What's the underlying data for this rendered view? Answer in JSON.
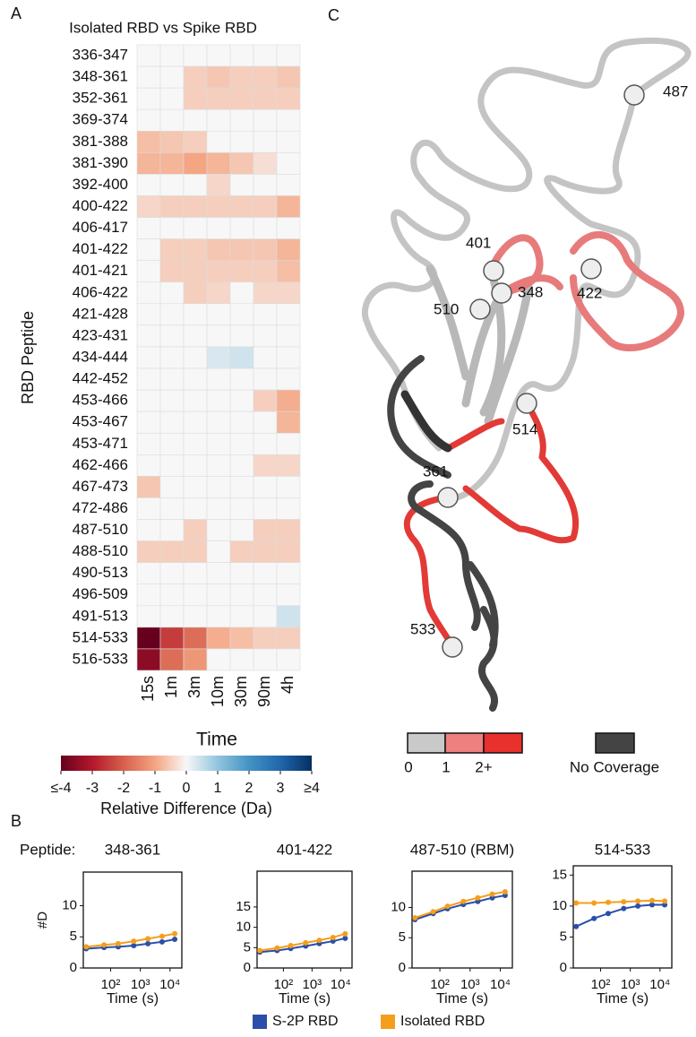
{
  "panel_labels": [
    "A",
    "B",
    "C"
  ],
  "peptide_prefix": "Peptide:",
  "structure": {
    "labels": [
      "487",
      "401",
      "348",
      "422",
      "510",
      "514",
      "361",
      "533"
    ],
    "legend": [
      "0",
      "1",
      "2+",
      "No Coverage"
    ]
  },
  "chart_data": [
    {
      "type": "heatmap",
      "title": "Isolated RBD vs Spike RBD",
      "xlabel": "Time",
      "ylabel": "RBD Peptide",
      "x": [
        "15s",
        "1m",
        "3m",
        "10m",
        "30m",
        "90m",
        "4h"
      ],
      "categories": [
        "336-347",
        "348-361",
        "352-361",
        "369-374",
        "381-388",
        "381-390",
        "392-400",
        "400-422",
        "406-417",
        "401-422",
        "401-421",
        "406-422",
        "421-428",
        "423-431",
        "434-444",
        "442-452",
        "453-466",
        "453-467",
        "453-471",
        "462-466",
        "467-473",
        "472-486",
        "487-510",
        "488-510",
        "490-513",
        "496-509",
        "491-513",
        "514-533",
        "516-533"
      ],
      "values": [
        [
          0,
          0,
          0,
          0,
          0,
          0,
          0
        ],
        [
          0,
          0,
          -0.5,
          -0.6,
          -0.5,
          -0.5,
          -0.6
        ],
        [
          0,
          0,
          -0.5,
          -0.5,
          -0.5,
          -0.5,
          -0.5
        ],
        [
          0,
          0,
          0,
          0,
          0,
          0,
          0
        ],
        [
          -0.7,
          -0.6,
          -0.5,
          0,
          0,
          0,
          0
        ],
        [
          -0.8,
          -0.8,
          -1,
          -0.8,
          -0.6,
          -0.3,
          0
        ],
        [
          0,
          0,
          0,
          -0.4,
          0,
          0,
          0
        ],
        [
          -0.4,
          -0.5,
          -0.5,
          -0.5,
          -0.5,
          -0.5,
          -0.8
        ],
        [
          0,
          0,
          0,
          0,
          0,
          0,
          0
        ],
        [
          0,
          -0.5,
          -0.5,
          -0.6,
          -0.6,
          -0.6,
          -0.8
        ],
        [
          0,
          -0.5,
          -0.5,
          -0.5,
          -0.5,
          -0.5,
          -0.7
        ],
        [
          0,
          0,
          -0.5,
          -0.4,
          0,
          -0.4,
          -0.4
        ],
        [
          0,
          0,
          0,
          0,
          0,
          0,
          0
        ],
        [
          0,
          0,
          0,
          0,
          0,
          0,
          0
        ],
        [
          0,
          0,
          0,
          0.3,
          0.4,
          0,
          0
        ],
        [
          0,
          0,
          0,
          0,
          0,
          0,
          0
        ],
        [
          0,
          0,
          0,
          0,
          0,
          -0.5,
          -0.9
        ],
        [
          0,
          0,
          0,
          0,
          0,
          0,
          -0.8
        ],
        [
          0,
          0,
          0,
          0,
          0,
          0,
          0
        ],
        [
          0,
          0,
          0,
          0,
          0,
          -0.4,
          -0.4
        ],
        [
          -0.6,
          0,
          0,
          0,
          0,
          0,
          0
        ],
        [
          0,
          0,
          0,
          0,
          0,
          0,
          0
        ],
        [
          0,
          0,
          -0.5,
          0,
          0,
          -0.5,
          -0.5
        ],
        [
          -0.5,
          -0.5,
          -0.5,
          0,
          -0.5,
          -0.5,
          -0.5
        ],
        [
          0,
          0,
          0,
          0,
          0,
          0,
          0
        ],
        [
          0,
          0,
          0,
          0,
          0,
          0,
          0
        ],
        [
          0,
          0,
          0,
          0,
          0,
          0,
          0.4
        ],
        [
          -4,
          -2.5,
          -1.8,
          -0.9,
          -0.7,
          -0.5,
          -0.5
        ],
        [
          -3.5,
          -1.8,
          -1.2,
          0,
          0,
          0,
          0
        ]
      ],
      "colormap": "RdBu",
      "colorbar": {
        "label": "Relative Difference (Da)",
        "lim": [
          -4,
          4
        ],
        "ticks": [
          {
            "value": -4,
            "label": "≤-4"
          },
          -3,
          -2,
          -1,
          0,
          1,
          2,
          3,
          {
            "value": 4,
            "label": "≥4"
          }
        ]
      }
    },
    {
      "type": "line",
      "title": "348-361",
      "ylabel": "#D",
      "xlabel": "Time (s)",
      "log_x": true,
      "x": [
        15,
        60,
        180,
        600,
        1800,
        5400,
        14400
      ],
      "xlim": [
        12,
        25000
      ],
      "xticks": [
        {
          "value": 100,
          "label": "10²"
        },
        {
          "value": 1000,
          "label": "10³"
        },
        {
          "value": 10000,
          "label": "10⁴"
        }
      ],
      "ylim": [
        0,
        15.4
      ],
      "yticks": [
        0,
        5,
        10
      ],
      "series": [
        {
          "name": "S-2P RBD",
          "color": "#2b4fa8",
          "values": [
            3.1,
            3.3,
            3.4,
            3.6,
            3.9,
            4.2,
            4.6
          ]
        },
        {
          "name": "Isolated RBD",
          "color": "#f59e1b",
          "values": [
            3.4,
            3.7,
            3.9,
            4.3,
            4.7,
            5.1,
            5.5
          ]
        }
      ]
    },
    {
      "type": "line",
      "title": "401-422",
      "xlabel": "Time (s)",
      "log_x": true,
      "x": [
        15,
        60,
        180,
        600,
        1800,
        5400,
        14400
      ],
      "xlim": [
        12,
        25000
      ],
      "xticks": [
        {
          "value": 100,
          "label": "10²"
        },
        {
          "value": 1000,
          "label": "10³"
        },
        {
          "value": 10000,
          "label": "10⁴"
        }
      ],
      "ylim": [
        0,
        23.8
      ],
      "yticks": [
        0,
        5,
        10,
        15
      ],
      "series": [
        {
          "color": "#2b4fa8",
          "values": [
            3.9,
            4.3,
            4.8,
            5.4,
            6,
            6.6,
            7.3
          ]
        },
        {
          "color": "#f59e1b",
          "values": [
            4.3,
            4.9,
            5.5,
            6.2,
            6.8,
            7.5,
            8.4
          ]
        }
      ]
    },
    {
      "type": "line",
      "title": "487-510 (RBM)",
      "xlabel": "Time (s)",
      "log_x": true,
      "x": [
        15,
        60,
        180,
        600,
        1800,
        5400,
        14400
      ],
      "xlim": [
        12,
        25000
      ],
      "xticks": [
        {
          "value": 100,
          "label": "10²"
        },
        {
          "value": 1000,
          "label": "10³"
        },
        {
          "value": 10000,
          "label": "10⁴"
        }
      ],
      "ylim": [
        0,
        16
      ],
      "yticks": [
        0,
        5,
        10
      ],
      "series": [
        {
          "color": "#2b4fa8",
          "values": [
            8,
            9,
            9.8,
            10.5,
            11,
            11.6,
            12
          ]
        },
        {
          "color": "#f59e1b",
          "values": [
            8.3,
            9.3,
            10.2,
            11,
            11.6,
            12.2,
            12.6
          ]
        }
      ]
    },
    {
      "type": "line",
      "title": "514-533",
      "xlabel": "Time (s)",
      "log_x": true,
      "x": [
        15,
        60,
        180,
        600,
        1800,
        5400,
        14400
      ],
      "xlim": [
        12,
        25000
      ],
      "xticks": [
        {
          "value": 100,
          "label": "10²"
        },
        {
          "value": 1000,
          "label": "10³"
        },
        {
          "value": 10000,
          "label": "10⁴"
        }
      ],
      "ylim": [
        0,
        16.5
      ],
      "yticks": [
        0,
        5,
        10,
        15
      ],
      "series": [
        {
          "color": "#2b4fa8",
          "values": [
            6.7,
            8,
            8.8,
            9.6,
            10,
            10.2,
            10.2
          ]
        },
        {
          "color": "#f59e1b",
          "values": [
            10.5,
            10.5,
            10.6,
            10.7,
            10.8,
            10.9,
            10.8
          ]
        }
      ]
    }
  ]
}
